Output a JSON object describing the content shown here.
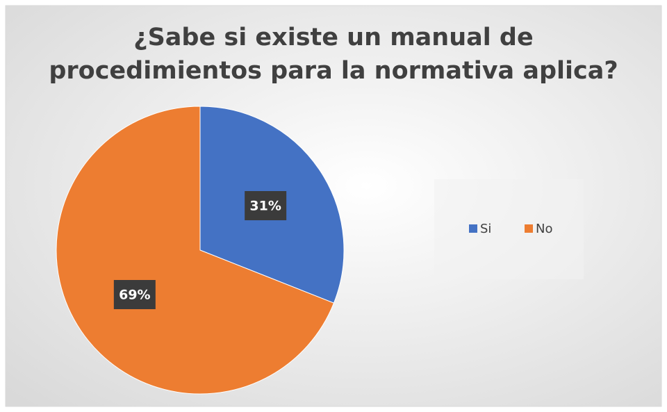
{
  "chart_data": {
    "type": "pie",
    "title": "¿Sabe si existe un manual de procedimientos para la normativa aplica?",
    "categories": [
      "Si",
      "No"
    ],
    "values": [
      31,
      69
    ],
    "value_labels": [
      "31%",
      "69%"
    ],
    "colors": [
      "#4472c4",
      "#ed7d31"
    ],
    "legend": "right"
  }
}
